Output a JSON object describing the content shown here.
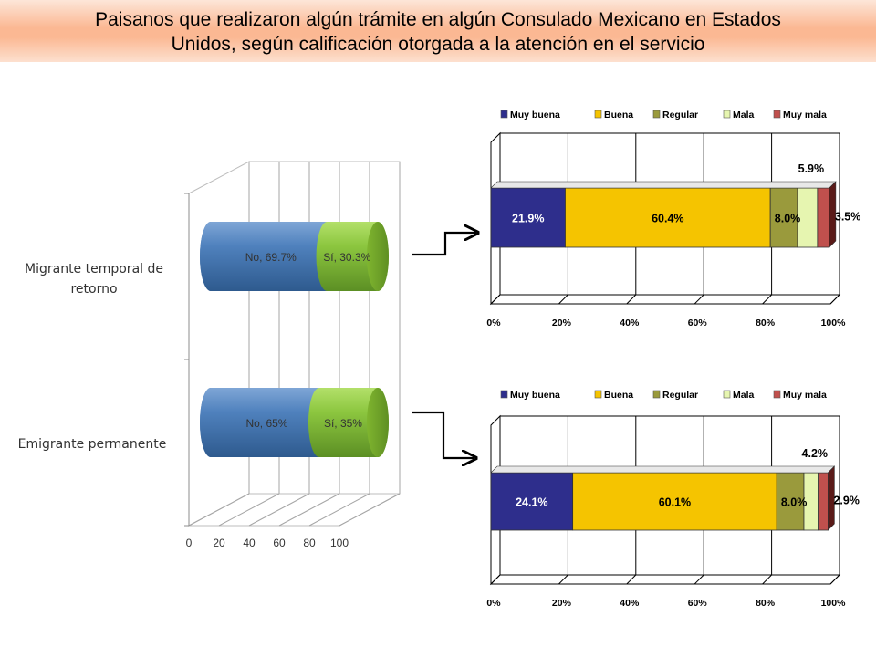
{
  "title": {
    "line1": "Paisanos que realizaron algún trámite en algún Consulado Mexicano en Estados",
    "line2": "Unidos, según calificación otorgada  a la atención en el servicio"
  },
  "colors": {
    "banner": "#fbb893",
    "no": "#4f81bd",
    "si": "#8cc63f",
    "muy_buena": "#2e2e8c",
    "buena": "#f5c400",
    "regular": "#9a9a3c",
    "mala": "#e6f5b0",
    "muy_mala": "#c0504d"
  },
  "chart_data": [
    {
      "type": "bar",
      "orientation": "horizontal",
      "stacked": true,
      "style": "3d-cylinder",
      "categories": [
        "Migrante temporal de retorno",
        "Emigrante permanente"
      ],
      "series": [
        {
          "name": "No",
          "values": [
            69.7,
            65
          ]
        },
        {
          "name": "Sí",
          "values": [
            30.3,
            35
          ]
        }
      ],
      "data_labels": [
        [
          "No, 69.7%",
          "Sí, 30.3%"
        ],
        [
          "No, 65%",
          "Sí, 35%"
        ]
      ],
      "xticks": [
        "0",
        "20",
        "40",
        "60",
        "80",
        "100"
      ],
      "xlim": [
        0,
        100
      ],
      "grid": true,
      "legend": "none"
    },
    {
      "type": "bar",
      "orientation": "horizontal",
      "stacked": true,
      "style": "3d",
      "categories": [
        "Migrante temporal de retorno"
      ],
      "series": [
        {
          "name": "Muy buena",
          "values": [
            21.9
          ],
          "label": "21.9%"
        },
        {
          "name": "Buena",
          "values": [
            60.4
          ],
          "label": "60.4%"
        },
        {
          "name": "Regular",
          "values": [
            8.0
          ],
          "label": "8.0%"
        },
        {
          "name": "Mala",
          "values": [
            5.9
          ],
          "label": "5.9%"
        },
        {
          "name": "Muy mala",
          "values": [
            3.5
          ],
          "label": "3.5%"
        }
      ],
      "xticks": [
        "0%",
        "20%",
        "40%",
        "60%",
        "80%",
        "100%"
      ],
      "xlim": [
        0,
        100
      ],
      "grid": true,
      "legend": "top"
    },
    {
      "type": "bar",
      "orientation": "horizontal",
      "stacked": true,
      "style": "3d",
      "categories": [
        "Emigrante permanente"
      ],
      "series": [
        {
          "name": "Muy buena",
          "values": [
            24.1
          ],
          "label": "24.1%"
        },
        {
          "name": "Buena",
          "values": [
            60.1
          ],
          "label": "60.1%"
        },
        {
          "name": "Regular",
          "values": [
            8.0
          ],
          "label": "8.0%"
        },
        {
          "name": "Mala",
          "values": [
            4.2
          ],
          "label": "4.2%"
        },
        {
          "name": "Muy mala",
          "values": [
            2.9
          ],
          "label": "2.9%"
        }
      ],
      "xticks": [
        "0%",
        "20%",
        "40%",
        "60%",
        "80%",
        "100%"
      ],
      "xlim": [
        0,
        100
      ],
      "grid": true,
      "legend": "top"
    }
  ]
}
